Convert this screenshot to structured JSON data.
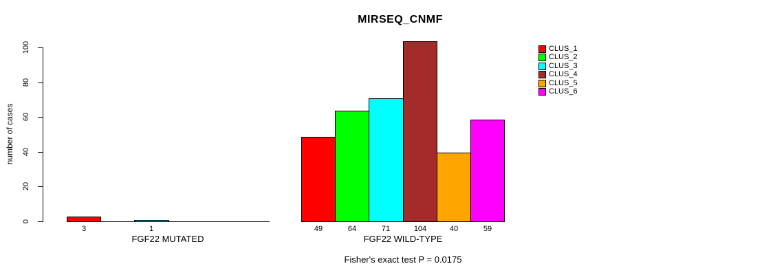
{
  "chart_data": {
    "type": "bar",
    "title": "MIRSEQ_CNMF",
    "ylabel": "number of cases",
    "ylim": [
      0,
      104
    ],
    "yticks": [
      0,
      20,
      40,
      60,
      80,
      100
    ],
    "grid": false,
    "legend_position": "right",
    "categories": [
      "FGF22 MUTATED",
      "FGF22 WILD-TYPE"
    ],
    "series": [
      {
        "name": "CLUS_1",
        "color": "#ff0000",
        "values": [
          3,
          49
        ]
      },
      {
        "name": "CLUS_2",
        "color": "#00ff00",
        "values": [
          0,
          64
        ]
      },
      {
        "name": "CLUS_3",
        "color": "#00ffff",
        "values": [
          1,
          71
        ]
      },
      {
        "name": "CLUS_4",
        "color": "#a52a2a",
        "values": [
          0,
          104
        ]
      },
      {
        "name": "CLUS_5",
        "color": "#ffa500",
        "values": [
          0,
          40
        ]
      },
      {
        "name": "CLUS_6",
        "color": "#ff00ff",
        "values": [
          0,
          59
        ]
      }
    ],
    "value_labels": {
      "shown_under_bars": true,
      "show_zeros": false
    },
    "annotation": "Fisher's exact test P = 0.0175"
  }
}
